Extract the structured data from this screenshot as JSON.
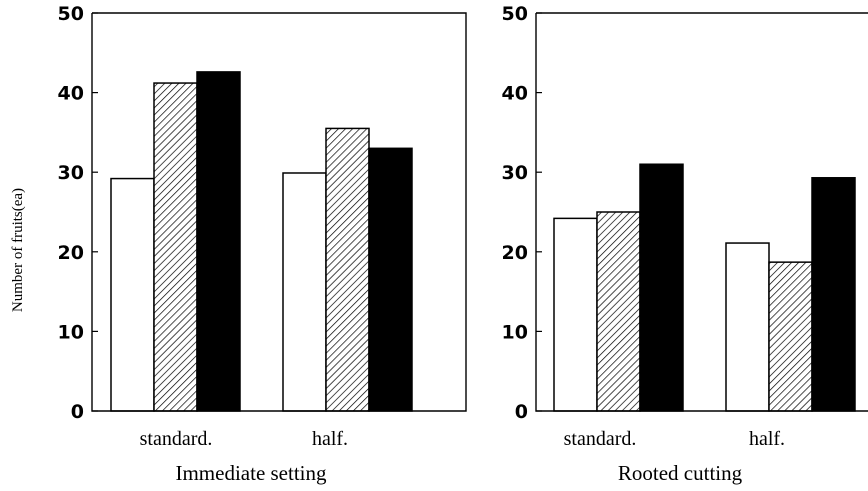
{
  "ylabel": "Number of fruits(ea)",
  "chart_data": [
    {
      "type": "bar",
      "xlabel": "Immediate setting",
      "ylabel": "Number of fruits(ea)",
      "ylim": [
        0,
        50
      ],
      "yticks": [
        "0",
        "10",
        "20",
        "30",
        "40",
        "50"
      ],
      "categories": [
        "standard.",
        "half."
      ],
      "series": [
        {
          "fill": "white",
          "values": [
            29.2,
            29.9
          ]
        },
        {
          "fill": "hatched",
          "values": [
            41.2,
            35.5
          ]
        },
        {
          "fill": "black",
          "values": [
            42.6,
            33.0
          ]
        }
      ],
      "grid": false
    },
    {
      "type": "bar",
      "xlabel": "Rooted cutting",
      "ylim": [
        0,
        50
      ],
      "yticks": [
        "0",
        "10",
        "20",
        "30",
        "40",
        "50"
      ],
      "categories": [
        "standard.",
        "half."
      ],
      "series": [
        {
          "fill": "white",
          "values": [
            24.2,
            21.1
          ]
        },
        {
          "fill": "hatched",
          "values": [
            25.0,
            18.7
          ]
        },
        {
          "fill": "black",
          "values": [
            31.0,
            29.3
          ]
        }
      ],
      "grid": false
    }
  ],
  "colors": {
    "bar_edge": "#000000",
    "black_bar": "#000000",
    "white_bar": "#ffffff"
  }
}
